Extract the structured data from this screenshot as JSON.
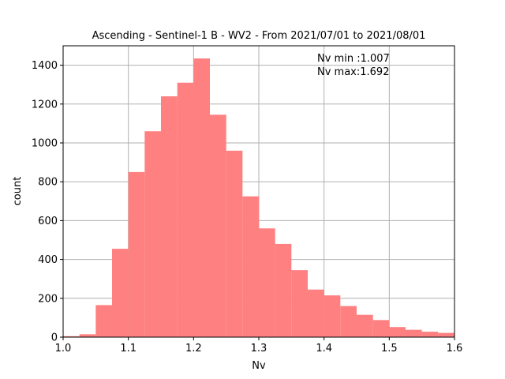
{
  "chart_data": {
    "type": "bar",
    "title": "Ascending - Sentinel-1 B - WV2 - From 2021/07/01 to 2021/08/01",
    "xlabel": "Nv",
    "ylabel": "count",
    "xlim": [
      1.0,
      1.6
    ],
    "ylim": [
      0,
      1500
    ],
    "grid": true,
    "bin_width": 0.025,
    "bin_start": 1.0,
    "values": [
      5,
      15,
      165,
      455,
      850,
      1060,
      1240,
      1310,
      1435,
      1145,
      960,
      725,
      560,
      480,
      345,
      245,
      215,
      160,
      115,
      88,
      52,
      38,
      28,
      22
    ],
    "x_ticks": [
      "1.0",
      "1.1",
      "1.2",
      "1.3",
      "1.4",
      "1.5",
      "1.6"
    ],
    "y_ticks": [
      "0",
      "200",
      "400",
      "600",
      "800",
      "1000",
      "1200",
      "1400"
    ],
    "annotation": [
      "Nv min :1.007",
      "Nv max:1.692"
    ],
    "colors": {
      "bar": "#ff8080",
      "grid": "#b0b0b0",
      "axis": "#000000"
    }
  }
}
